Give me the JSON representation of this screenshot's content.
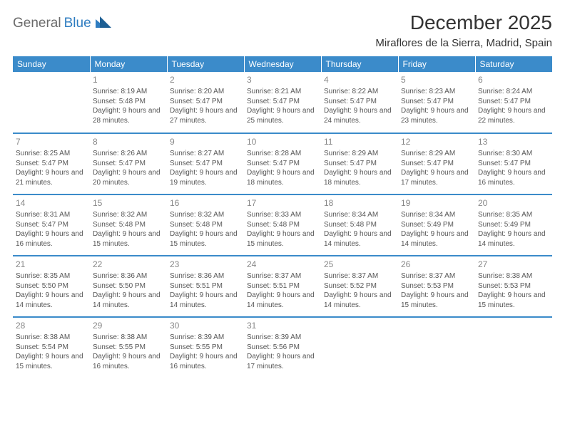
{
  "logo": {
    "part1": "General",
    "part2": "Blue"
  },
  "title": "December 2025",
  "location": "Miraflores de la Sierra, Madrid, Spain",
  "colors": {
    "header_bg": "#3b8bca",
    "header_text": "#ffffff",
    "row_divider": "#3b8bca",
    "body_text": "#555555",
    "daynum_text": "#888888",
    "logo_gray": "#6b6b6b",
    "logo_blue": "#2e7cc0",
    "page_bg": "#ffffff"
  },
  "daysOfWeek": [
    "Sunday",
    "Monday",
    "Tuesday",
    "Wednesday",
    "Thursday",
    "Friday",
    "Saturday"
  ],
  "weeks": [
    [
      null,
      {
        "n": "1",
        "sr": "8:19 AM",
        "ss": "5:48 PM",
        "dl": "9 hours and 28 minutes."
      },
      {
        "n": "2",
        "sr": "8:20 AM",
        "ss": "5:47 PM",
        "dl": "9 hours and 27 minutes."
      },
      {
        "n": "3",
        "sr": "8:21 AM",
        "ss": "5:47 PM",
        "dl": "9 hours and 25 minutes."
      },
      {
        "n": "4",
        "sr": "8:22 AM",
        "ss": "5:47 PM",
        "dl": "9 hours and 24 minutes."
      },
      {
        "n": "5",
        "sr": "8:23 AM",
        "ss": "5:47 PM",
        "dl": "9 hours and 23 minutes."
      },
      {
        "n": "6",
        "sr": "8:24 AM",
        "ss": "5:47 PM",
        "dl": "9 hours and 22 minutes."
      }
    ],
    [
      {
        "n": "7",
        "sr": "8:25 AM",
        "ss": "5:47 PM",
        "dl": "9 hours and 21 minutes."
      },
      {
        "n": "8",
        "sr": "8:26 AM",
        "ss": "5:47 PM",
        "dl": "9 hours and 20 minutes."
      },
      {
        "n": "9",
        "sr": "8:27 AM",
        "ss": "5:47 PM",
        "dl": "9 hours and 19 minutes."
      },
      {
        "n": "10",
        "sr": "8:28 AM",
        "ss": "5:47 PM",
        "dl": "9 hours and 18 minutes."
      },
      {
        "n": "11",
        "sr": "8:29 AM",
        "ss": "5:47 PM",
        "dl": "9 hours and 18 minutes."
      },
      {
        "n": "12",
        "sr": "8:29 AM",
        "ss": "5:47 PM",
        "dl": "9 hours and 17 minutes."
      },
      {
        "n": "13",
        "sr": "8:30 AM",
        "ss": "5:47 PM",
        "dl": "9 hours and 16 minutes."
      }
    ],
    [
      {
        "n": "14",
        "sr": "8:31 AM",
        "ss": "5:47 PM",
        "dl": "9 hours and 16 minutes."
      },
      {
        "n": "15",
        "sr": "8:32 AM",
        "ss": "5:48 PM",
        "dl": "9 hours and 15 minutes."
      },
      {
        "n": "16",
        "sr": "8:32 AM",
        "ss": "5:48 PM",
        "dl": "9 hours and 15 minutes."
      },
      {
        "n": "17",
        "sr": "8:33 AM",
        "ss": "5:48 PM",
        "dl": "9 hours and 15 minutes."
      },
      {
        "n": "18",
        "sr": "8:34 AM",
        "ss": "5:48 PM",
        "dl": "9 hours and 14 minutes."
      },
      {
        "n": "19",
        "sr": "8:34 AM",
        "ss": "5:49 PM",
        "dl": "9 hours and 14 minutes."
      },
      {
        "n": "20",
        "sr": "8:35 AM",
        "ss": "5:49 PM",
        "dl": "9 hours and 14 minutes."
      }
    ],
    [
      {
        "n": "21",
        "sr": "8:35 AM",
        "ss": "5:50 PM",
        "dl": "9 hours and 14 minutes."
      },
      {
        "n": "22",
        "sr": "8:36 AM",
        "ss": "5:50 PM",
        "dl": "9 hours and 14 minutes."
      },
      {
        "n": "23",
        "sr": "8:36 AM",
        "ss": "5:51 PM",
        "dl": "9 hours and 14 minutes."
      },
      {
        "n": "24",
        "sr": "8:37 AM",
        "ss": "5:51 PM",
        "dl": "9 hours and 14 minutes."
      },
      {
        "n": "25",
        "sr": "8:37 AM",
        "ss": "5:52 PM",
        "dl": "9 hours and 14 minutes."
      },
      {
        "n": "26",
        "sr": "8:37 AM",
        "ss": "5:53 PM",
        "dl": "9 hours and 15 minutes."
      },
      {
        "n": "27",
        "sr": "8:38 AM",
        "ss": "5:53 PM",
        "dl": "9 hours and 15 minutes."
      }
    ],
    [
      {
        "n": "28",
        "sr": "8:38 AM",
        "ss": "5:54 PM",
        "dl": "9 hours and 15 minutes."
      },
      {
        "n": "29",
        "sr": "8:38 AM",
        "ss": "5:55 PM",
        "dl": "9 hours and 16 minutes."
      },
      {
        "n": "30",
        "sr": "8:39 AM",
        "ss": "5:55 PM",
        "dl": "9 hours and 16 minutes."
      },
      {
        "n": "31",
        "sr": "8:39 AM",
        "ss": "5:56 PM",
        "dl": "9 hours and 17 minutes."
      },
      null,
      null,
      null
    ]
  ],
  "labels": {
    "sunrise": "Sunrise: ",
    "sunset": "Sunset: ",
    "daylight": "Daylight: "
  }
}
